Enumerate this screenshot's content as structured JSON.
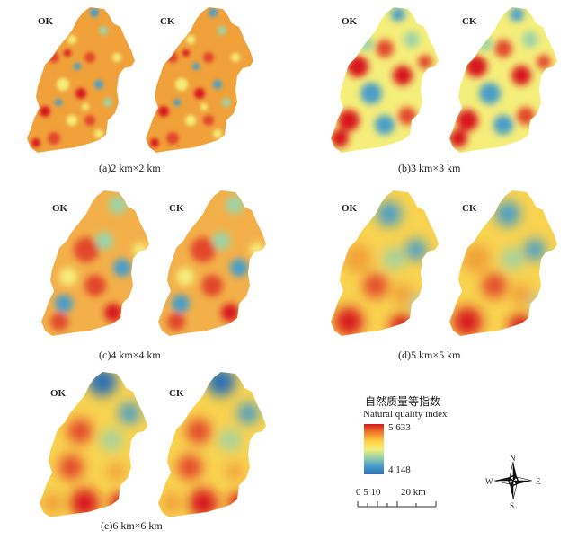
{
  "panels": [
    {
      "caption": "(a)2 km×2 km",
      "left": "OK",
      "right": "CK"
    },
    {
      "caption": "(b)3 km×3 km",
      "left": "OK",
      "right": "CK"
    },
    {
      "caption": "(c)4 km×4 km",
      "left": "OK",
      "right": "CK"
    },
    {
      "caption": "(d)5 km×5 km",
      "left": "OK",
      "right": "CK"
    },
    {
      "caption": "(e)6 km×6 km",
      "left": "OK",
      "right": "CK"
    }
  ],
  "legend": {
    "title_cn": "自然质量等指数",
    "title_en": "Natural quality index",
    "max": "5 633",
    "min": "4 148",
    "colors": [
      "#d7191c",
      "#f07c2c",
      "#fdd13f",
      "#f5ee7a",
      "#9fd3a4",
      "#4a9ec9",
      "#2b6fb6"
    ]
  },
  "scale": {
    "labels": "0 5 10",
    "end": "20 km"
  },
  "compass": {
    "n": "N",
    "s": "S",
    "e": "E",
    "w": "W"
  }
}
